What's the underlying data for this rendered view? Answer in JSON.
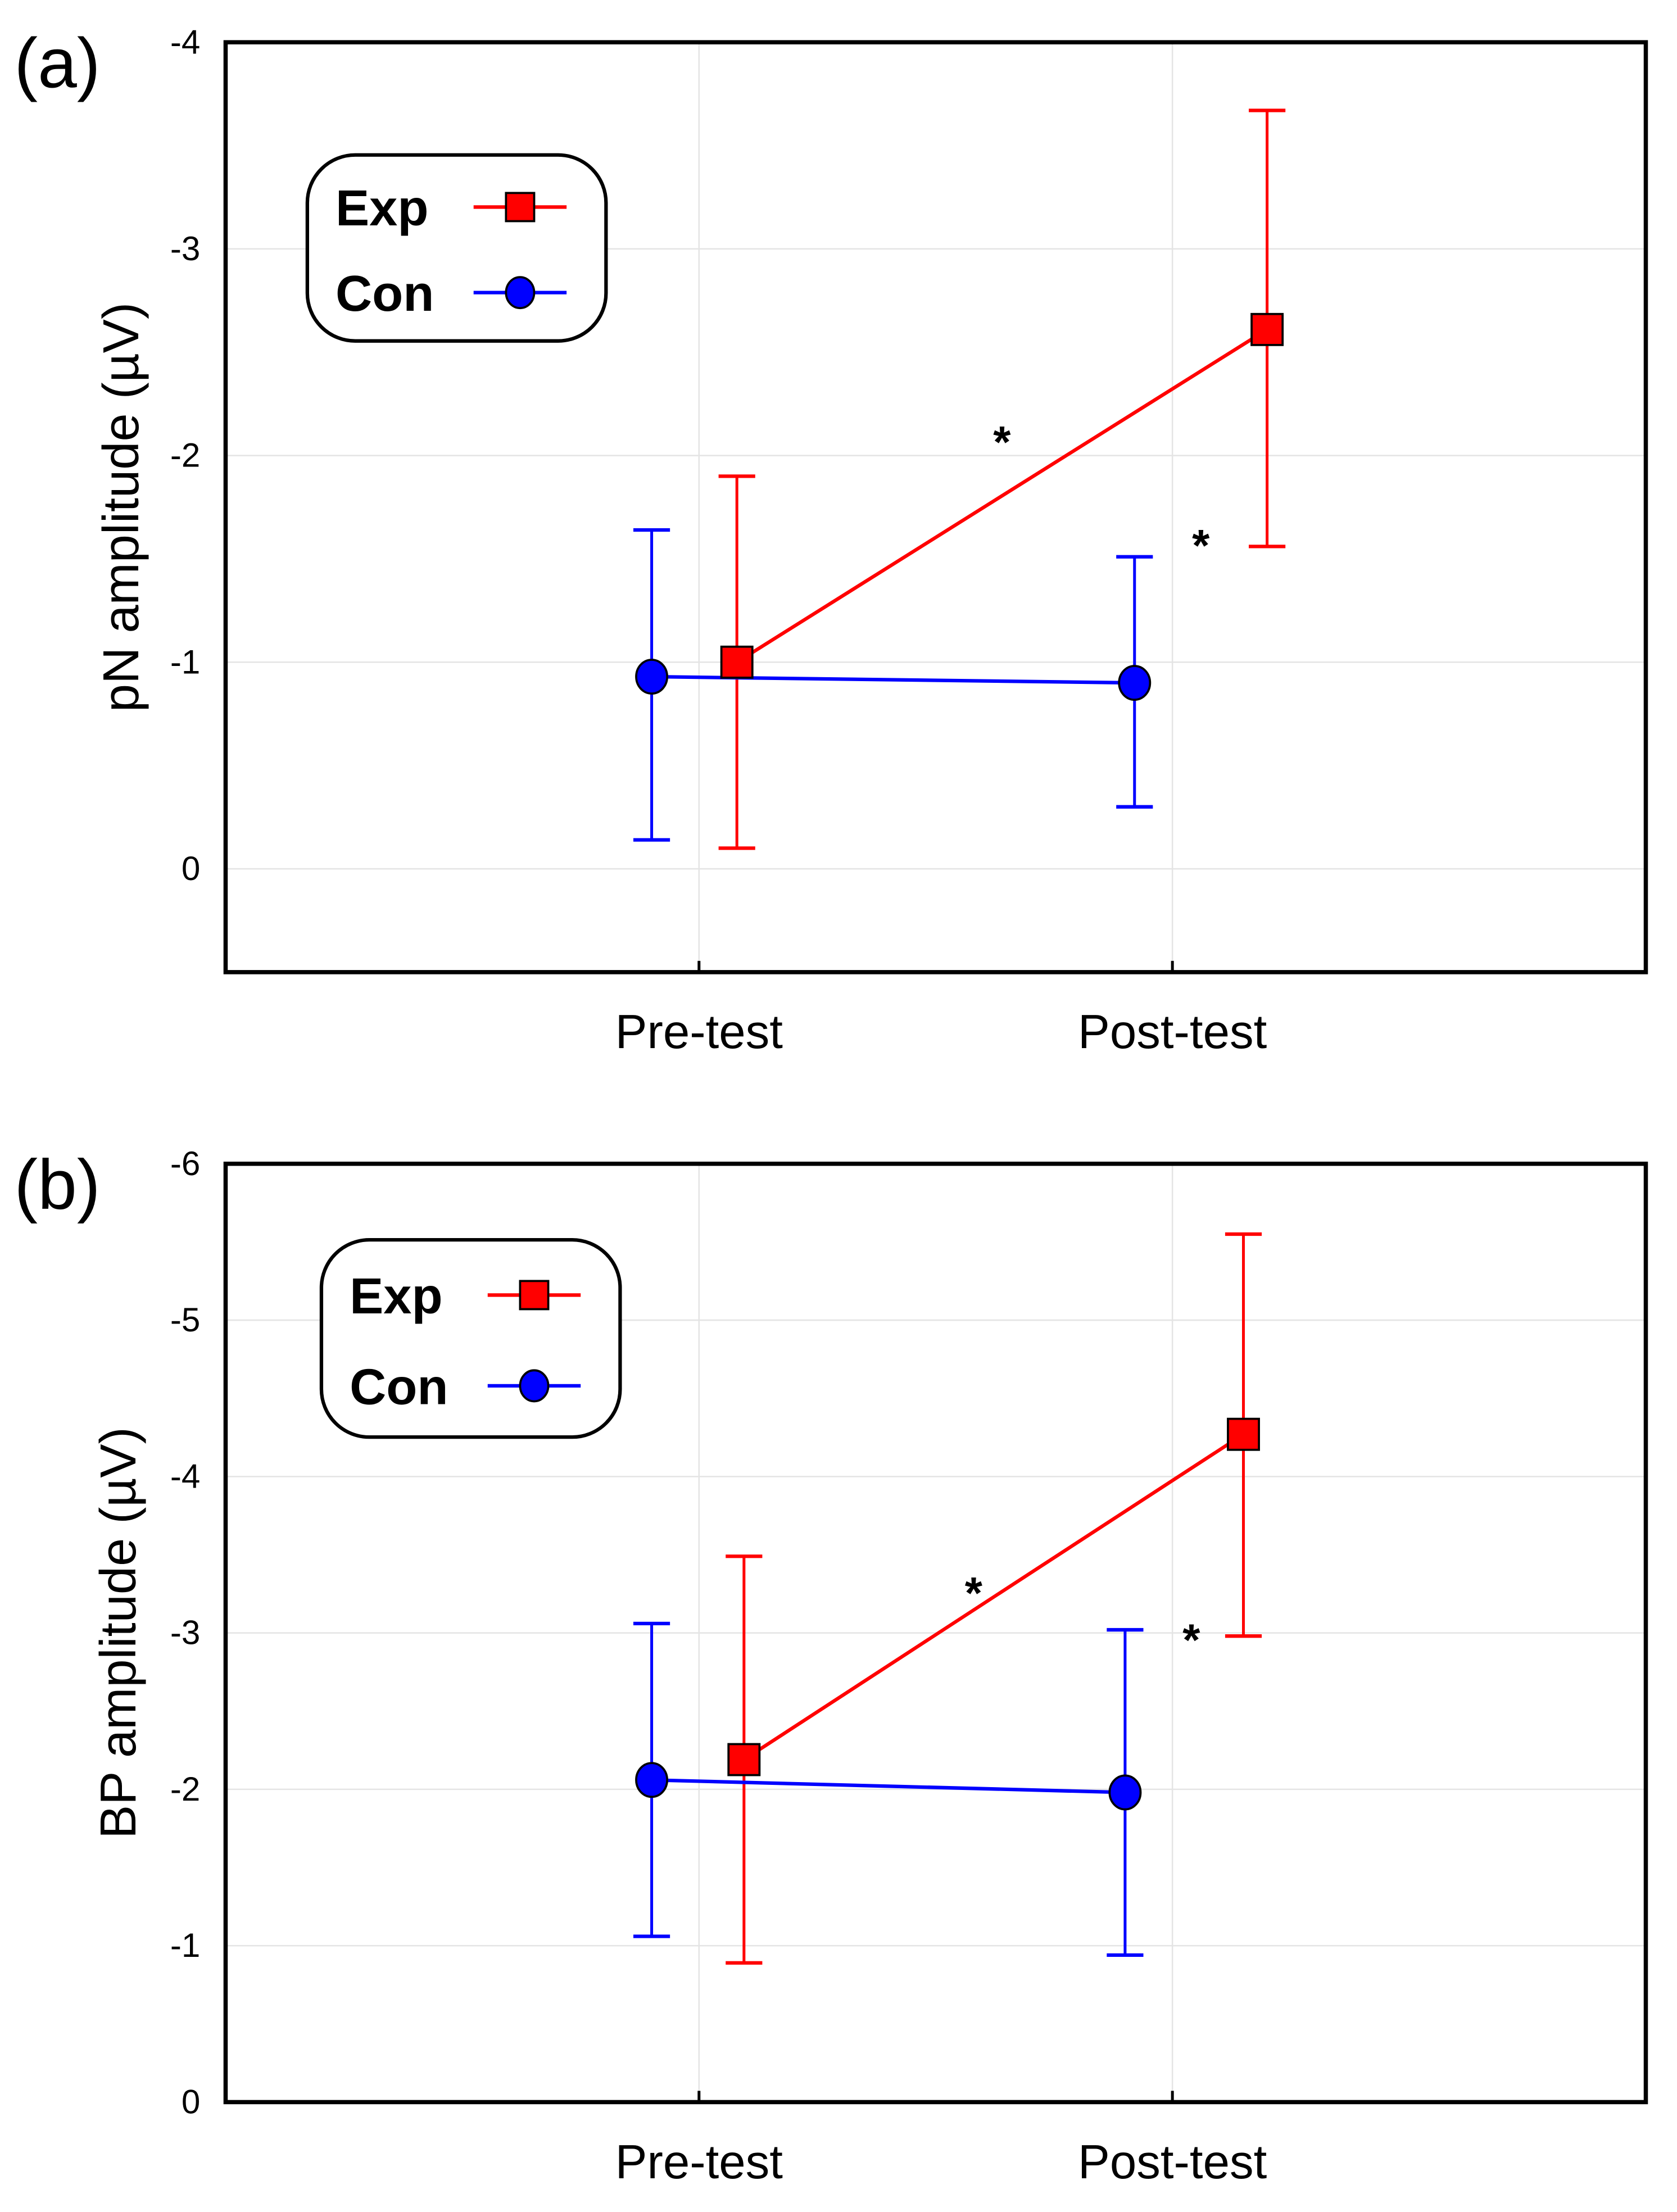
{
  "chart_data": [
    {
      "type": "line",
      "panel_label": "(a)",
      "ylabel": "pN amplitude (µV)",
      "xlabel": "",
      "categories": [
        "Pre-test",
        "Post-test"
      ],
      "xlim": [
        0,
        3
      ],
      "ylim": [
        0.5,
        -4
      ],
      "yticks": [
        -4,
        -3,
        -2,
        -1,
        0
      ],
      "ytick_labels": [
        "-4",
        "-3",
        "-2",
        "-1",
        "0"
      ],
      "grid": true,
      "legend_position": "top-left",
      "series": [
        {
          "name": "Exp",
          "color": "#ff0000",
          "marker": "square",
          "x": [
            1.08,
            2.2
          ],
          "values": [
            -1.0,
            -2.61
          ],
          "err_upper": [
            -1.9,
            -3.67
          ],
          "err_lower": [
            -0.1,
            -1.56
          ]
        },
        {
          "name": "Con",
          "color": "#0000ff",
          "marker": "circle",
          "x": [
            0.9,
            1.92
          ],
          "values": [
            -0.93,
            -0.9
          ],
          "err_upper": [
            -1.64,
            -1.51
          ],
          "err_lower": [
            -0.14,
            -0.3
          ]
        }
      ],
      "annotations": [
        {
          "text": "*",
          "x": 1.64,
          "y": -2.1
        },
        {
          "text": "*",
          "x": 2.06,
          "y": -1.6
        }
      ]
    },
    {
      "type": "line",
      "panel_label": "(b)",
      "ylabel": "BP amplitude (µV)",
      "xlabel": "",
      "categories": [
        "Pre-test",
        "Post-test"
      ],
      "xlim": [
        0,
        3
      ],
      "ylim": [
        0,
        -6
      ],
      "yticks": [
        -6,
        -5,
        -4,
        -3,
        -2,
        -1,
        0
      ],
      "ytick_labels": [
        "-6",
        "-5",
        "-4",
        "-3",
        "-2",
        "-1",
        "0"
      ],
      "grid": true,
      "legend_position": "top-left",
      "series": [
        {
          "name": "Exp",
          "color": "#ff0000",
          "marker": "square",
          "x": [
            1.095,
            2.15
          ],
          "values": [
            -2.19,
            -4.27
          ],
          "err_upper": [
            -3.49,
            -5.55
          ],
          "err_lower": [
            -0.89,
            -2.98
          ]
        },
        {
          "name": "Con",
          "color": "#0000ff",
          "marker": "circle",
          "x": [
            0.9,
            1.9
          ],
          "values": [
            -2.06,
            -1.98
          ],
          "err_upper": [
            -3.06,
            -3.02
          ],
          "err_lower": [
            -1.06,
            -0.94
          ]
        }
      ],
      "annotations": [
        {
          "text": "*",
          "x": 1.58,
          "y": -3.3
        },
        {
          "text": "*",
          "x": 2.04,
          "y": -3.0
        }
      ]
    }
  ]
}
